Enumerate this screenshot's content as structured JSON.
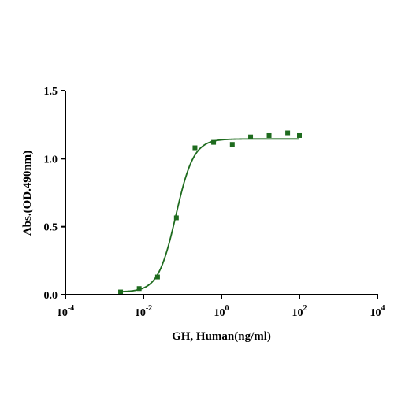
{
  "chart_data": {
    "type": "scatter",
    "xlabel": "GH, Human(ng/ml)",
    "ylabel": "Abs.(OD.490nm)",
    "x_scale": "log10",
    "xlim": [
      0.0001,
      10000
    ],
    "ylim": [
      0,
      1.5
    ],
    "x_ticks": [
      {
        "base": "10",
        "exp": "-4"
      },
      {
        "base": "10",
        "exp": "-2"
      },
      {
        "base": "10",
        "exp": "0"
      },
      {
        "base": "10",
        "exp": "2"
      },
      {
        "base": "10",
        "exp": "4"
      }
    ],
    "y_ticks": [
      "0.0",
      "0.5",
      "1.0",
      "1.5"
    ],
    "grid": false,
    "legend": "none",
    "series": [
      {
        "color": "#1e6b1e",
        "marker": "square",
        "points": [
          {
            "x": 0.0026,
            "y": 0.02
          },
          {
            "x": 0.0078,
            "y": 0.045
          },
          {
            "x": 0.023,
            "y": 0.13
          },
          {
            "x": 0.07,
            "y": 0.565
          },
          {
            "x": 0.21,
            "y": 1.08
          },
          {
            "x": 0.63,
            "y": 1.12
          },
          {
            "x": 1.9,
            "y": 1.105
          },
          {
            "x": 5.6,
            "y": 1.16
          },
          {
            "x": 16.7,
            "y": 1.17
          },
          {
            "x": 50,
            "y": 1.19
          },
          {
            "x": 100,
            "y": 1.17
          }
        ],
        "fit": {
          "model": "4PL",
          "bottom": 0.02,
          "top": 1.145,
          "ec50": 0.068,
          "hill": 1.9,
          "x_range": [
            0.0026,
            100
          ]
        }
      }
    ]
  }
}
